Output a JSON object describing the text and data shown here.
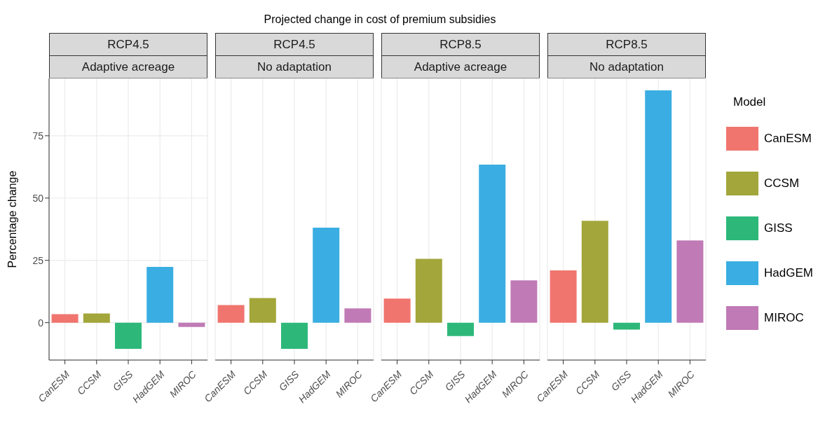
{
  "chart_data": [
    {
      "type": "bar",
      "stacked": true,
      "title": "RCP4.5",
      "subtitle": "Adaptive acreage",
      "annotations": [
        "Projected change in cost of premium subsidies"
      ],
      "ylabel": "Percentage change",
      "categories": [
        "CanESM",
        "CCSM",
        "GISS",
        "HadGEM",
        "MIROC"
      ],
      "series": [
        {
          "color": "#f0756e",
          "values": [
            3.4,
            null,
            null,
            null,
            null
          ]
        },
        {
          "color": "#a3a63a",
          "values": [
            null,
            3.7,
            null,
            null,
            null
          ]
        },
        {
          "color": "#2db87a",
          "values": [
            null,
            null,
            -10.5,
            null,
            null
          ]
        },
        {
          "color": "#3aaee2",
          "values": [
            null,
            null,
            null,
            22.4,
            null
          ]
        },
        {
          "color": "#c07ab6",
          "values": [
            null,
            null,
            null,
            null,
            -1.7
          ]
        }
      ],
      "ylim": [
        -15,
        98
      ],
      "yticks": [
        0,
        25,
        50,
        75
      ],
      "grid": true
    },
    {
      "type": "bar",
      "stacked": true,
      "title": "RCP4.5",
      "subtitle": "No adaptation",
      "categories": [
        "CanESM",
        "CCSM",
        "GISS",
        "HadGEM",
        "MIROC"
      ],
      "series": [
        {
          "color": "#f0756e",
          "values": [
            7.1,
            null,
            null,
            null,
            null
          ]
        },
        {
          "color": "#a3a63a",
          "values": [
            null,
            9.9,
            null,
            null,
            null
          ]
        },
        {
          "color": "#2db87a",
          "values": [
            null,
            null,
            -10.5,
            null,
            null
          ]
        },
        {
          "color": "#3aaee2",
          "values": [
            null,
            null,
            null,
            38.1,
            null
          ]
        },
        {
          "color": "#c07ab6",
          "values": [
            null,
            null,
            null,
            null,
            5.7
          ]
        }
      ],
      "ylim": [
        -15,
        98
      ],
      "yticks": [
        0,
        25,
        50,
        75
      ],
      "grid": true,
      "tick_labels": "x"
    },
    {
      "type": "bar",
      "stacked": true,
      "title": "RCP8.5",
      "subtitle": "Adaptive acreage",
      "categories": [
        "CanESM",
        "CCSM",
        "GISS",
        "HadGEM",
        "MIROC"
      ],
      "series": [
        {
          "color": "#f0756e",
          "values": [
            9.7,
            null,
            null,
            null,
            null
          ]
        },
        {
          "color": "#a3a63a",
          "values": [
            null,
            25.6,
            null,
            null,
            null
          ]
        },
        {
          "color": "#2db87a",
          "values": [
            null,
            null,
            -5.4,
            null,
            null
          ]
        },
        {
          "color": "#3aaee2",
          "values": [
            null,
            null,
            null,
            63.4,
            null
          ]
        },
        {
          "color": "#c07ab6",
          "values": [
            null,
            null,
            null,
            null,
            17.0
          ]
        }
      ],
      "ylim": [
        -15,
        98
      ],
      "yticks": [
        0,
        25,
        50,
        75
      ],
      "grid": true,
      "tick_labels": "x"
    },
    {
      "type": "bar",
      "stacked": true,
      "title": "RCP8.5",
      "subtitle": "No adaptation",
      "categories": [
        "CanESM",
        "CCSM",
        "GISS",
        "HadGEM",
        "MIROC"
      ],
      "series": [
        {
          "name": "CanESM",
          "color": "#f0756e",
          "values": [
            21.0,
            null,
            null,
            null,
            null
          ]
        },
        {
          "name": "CCSM",
          "color": "#a3a63a",
          "values": [
            null,
            40.9,
            null,
            null,
            null
          ]
        },
        {
          "name": "GISS",
          "color": "#2db87a",
          "values": [
            null,
            null,
            -2.8,
            null,
            null
          ]
        },
        {
          "name": "HadGEM",
          "color": "#3aaee2",
          "values": [
            null,
            null,
            null,
            93.2,
            null
          ]
        },
        {
          "name": "MIROC",
          "color": "#c07ab6",
          "values": [
            null,
            null,
            null,
            null,
            33.0
          ]
        }
      ],
      "ylim": [
        -15,
        98
      ],
      "yticks": [
        0,
        25,
        50,
        75
      ],
      "grid": true,
      "tick_labels": "x",
      "legend": "right",
      "legend_title": "Model"
    }
  ]
}
